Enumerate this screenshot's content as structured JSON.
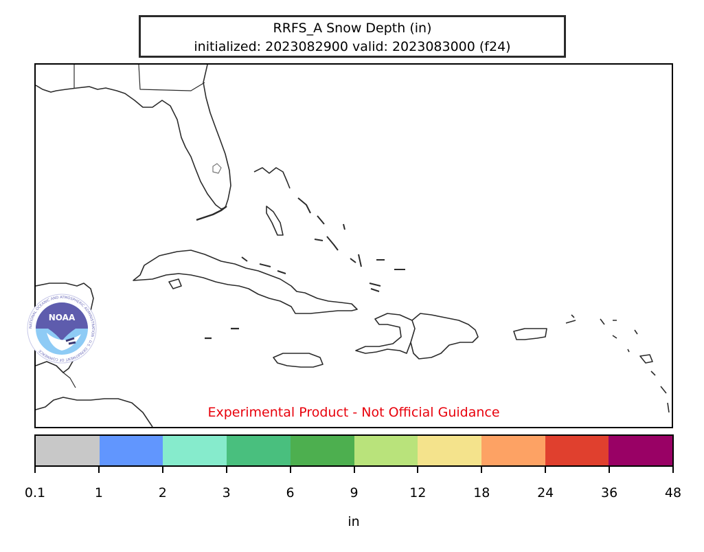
{
  "title": {
    "line1": "RRFS_A Snow Depth (in)",
    "line2": "initialized: 2023082900 valid: 2023083000 (f24)"
  },
  "disclaimer": "Experimental Product - Not Official Guidance",
  "logo": {
    "icon": "noaa-logo-icon",
    "text": "NOAA",
    "ring_text": "NATIONAL OCEANIC AND ATMOSPHERIC ADMINISTRATION · U.S. DEPARTMENT OF COMMERCE"
  },
  "colorbar": {
    "unit_label": "in",
    "colors": [
      "#c8c8c8",
      "#6196fe",
      "#86ebcc",
      "#49bf7e",
      "#4daf4f",
      "#b9e37b",
      "#f4e38c",
      "#fda264",
      "#e0402e",
      "#990165"
    ],
    "ticks": [
      "0.1",
      "1",
      "2",
      "3",
      "6",
      "9",
      "12",
      "18",
      "24",
      "36",
      "48"
    ]
  }
}
